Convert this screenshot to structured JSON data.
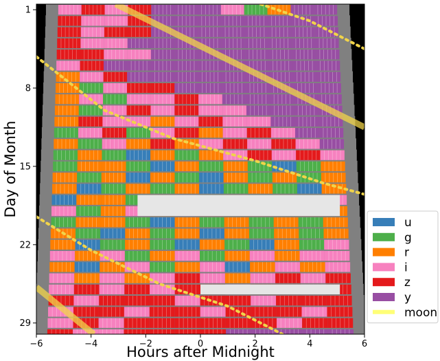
{
  "chart_data": {
    "type": "heatmap",
    "title": "",
    "xlabel": "Hours after Midnight",
    "ylabel": "Day of Month",
    "xlim": [
      -6,
      6
    ],
    "ylim": [
      30,
      0.5
    ],
    "x_ticks": [
      -6,
      -4,
      -2,
      0,
      2,
      4,
      6
    ],
    "x_tick_labels": [
      "−6",
      "−4",
      "−2",
      "0",
      "2",
      "4",
      "6"
    ],
    "y_ticks": [
      1,
      8,
      15,
      22,
      29
    ],
    "y_tick_labels": [
      "1",
      "8",
      "15",
      "22",
      "29"
    ],
    "days": 30,
    "night_window": {
      "start_hours": [
        -5.2,
        -5.6
      ],
      "end_hours": [
        5.0,
        5.6
      ]
    },
    "gaps": [
      {
        "day_from": 18,
        "day_to": 19,
        "x_from": -2.3,
        "x_to": 5.1
      },
      {
        "day_from": 26,
        "day_to": 26,
        "x_from": 0.0,
        "x_to": 5.1
      }
    ],
    "filters": [
      {
        "name": "u",
        "color": "#377eb8"
      },
      {
        "name": "g",
        "color": "#4daf4a"
      },
      {
        "name": "r",
        "color": "#ff7f00"
      },
      {
        "name": "i",
        "color": "#f781bf"
      },
      {
        "name": "z",
        "color": "#e41a1c"
      },
      {
        "name": "y",
        "color": "#984ea3"
      }
    ],
    "filter_by_day_segment": [
      [
        "i",
        "z",
        "i",
        "z",
        "y",
        "y",
        "y",
        "i",
        "g",
        "r",
        "y",
        "y"
      ],
      [
        "z",
        "i",
        "i",
        "z",
        "y",
        "y",
        "y",
        "y",
        "y",
        "y",
        "y",
        "y"
      ],
      [
        "z",
        "i",
        "z",
        "z",
        "y",
        "y",
        "y",
        "y",
        "y",
        "y",
        "y",
        "y"
      ],
      [
        "z",
        "i",
        "i",
        "y",
        "y",
        "y",
        "y",
        "y",
        "y",
        "y",
        "y",
        "y"
      ],
      [
        "z",
        "z",
        "i",
        "i",
        "y",
        "y",
        "y",
        "y",
        "y",
        "y",
        "y",
        "y"
      ],
      [
        "i",
        "z",
        "y",
        "y",
        "y",
        "y",
        "y",
        "y",
        "y",
        "y",
        "y",
        "y"
      ],
      [
        "r",
        "i",
        "z",
        "y",
        "y",
        "y",
        "y",
        "y",
        "y",
        "y",
        "y",
        "y"
      ],
      [
        "r",
        "g",
        "i",
        "z",
        "z",
        "y",
        "y",
        "y",
        "y",
        "y",
        "y",
        "y"
      ],
      [
        "r",
        "i",
        "g",
        "i",
        "i",
        "z",
        "i",
        "y",
        "y",
        "y",
        "y",
        "y"
      ],
      [
        "r",
        "g",
        "i",
        "z",
        "i",
        "z",
        "i",
        "i",
        "y",
        "y",
        "y",
        "y"
      ],
      [
        "r",
        "z",
        "i",
        "i",
        "r",
        "i",
        "z",
        "i",
        "i",
        "y",
        "y",
        "y"
      ],
      [
        "g",
        "i",
        "z",
        "g",
        "i",
        "z",
        "r",
        "i",
        "z",
        "i",
        "y",
        "y"
      ],
      [
        "r",
        "g",
        "i",
        "r",
        "z",
        "r",
        "i",
        "z",
        "i",
        "z",
        "i",
        "y"
      ],
      [
        "g",
        "r",
        "g",
        "u",
        "r",
        "g",
        "r",
        "i",
        "z",
        "i",
        "z",
        "i"
      ],
      [
        "g",
        "r",
        "r",
        "g",
        "u",
        "r",
        "g",
        "r",
        "g",
        "u",
        "g",
        "r"
      ],
      [
        "r",
        "g",
        "r",
        "u",
        "r",
        "g",
        "u",
        "r",
        "g",
        "r",
        "g",
        "r"
      ],
      [
        "r",
        "u",
        "g",
        "r",
        "g",
        "r",
        "u",
        "g",
        "r",
        "g",
        "u",
        "r"
      ],
      [
        "u",
        "r",
        "r",
        "g",
        "r",
        "i",
        "g",
        "r",
        "g",
        "r",
        "g",
        "i"
      ],
      [
        "i",
        "g",
        "r",
        "i",
        "r",
        "i",
        "r",
        "r",
        "r",
        "r",
        "r",
        "r"
      ],
      [
        "g",
        "r",
        "r",
        "g",
        "u",
        "r",
        "g",
        "r",
        "g",
        "r",
        "g",
        "r"
      ],
      [
        "r",
        "g",
        "u",
        "r",
        "g",
        "r",
        "u",
        "r",
        "g",
        "r",
        "g",
        "r"
      ],
      [
        "r",
        "u",
        "g",
        "r",
        "g",
        "u",
        "r",
        "g",
        "u",
        "r",
        "g",
        "i"
      ],
      [
        "i",
        "r",
        "i",
        "g",
        "r",
        "i",
        "g",
        "r",
        "i",
        "r",
        "i",
        "i"
      ],
      [
        "r",
        "u",
        "r",
        "i",
        "g",
        "r",
        "i",
        "u",
        "r",
        "i",
        "r",
        "i"
      ],
      [
        "i",
        "r",
        "i",
        "r",
        "i",
        "z",
        "i",
        "r",
        "i",
        "z",
        "i",
        "z"
      ],
      [
        "i",
        "z",
        "i",
        "z",
        "i",
        "z",
        "z",
        "i",
        "z",
        "z",
        "i",
        "z"
      ],
      [
        "z",
        "i",
        "z",
        "z",
        "z",
        "i",
        "z",
        "z",
        "i",
        "z",
        "z",
        "z"
      ],
      [
        "i",
        "z",
        "z",
        "i",
        "z",
        "z",
        "i",
        "z",
        "z",
        "z",
        "i",
        "z"
      ],
      [
        "i",
        "z",
        "i",
        "z",
        "z",
        "z",
        "z",
        "z",
        "z",
        "i",
        "z",
        "z"
      ],
      [
        "z",
        "i",
        "i",
        "z",
        "z",
        "z",
        "z",
        "y",
        "y",
        "y",
        "y",
        "y"
      ]
    ],
    "moon_tracks": [
      {
        "style": "solid",
        "points": [
          [
            -3.1,
            0.5
          ],
          [
            6.0,
            11.5
          ]
        ]
      },
      {
        "style": "solid",
        "points": [
          [
            -6.0,
            25.8
          ],
          [
            -3.9,
            30.0
          ]
        ]
      },
      {
        "style": "dotted",
        "points": [
          [
            -6.0,
            5.2
          ],
          [
            -3.5,
            10.0
          ],
          [
            -1.0,
            12.5
          ],
          [
            2.0,
            14.5
          ],
          [
            4.5,
            16.5
          ],
          [
            6.0,
            17.5
          ]
        ]
      },
      {
        "style": "dotted",
        "points": [
          [
            -6.0,
            19.5
          ],
          [
            -4.0,
            22.5
          ],
          [
            -1.5,
            25.5
          ],
          [
            1.0,
            27.5
          ],
          [
            3.0,
            30.0
          ]
        ]
      },
      {
        "style": "dotted",
        "points": [
          [
            2.2,
            0.5
          ],
          [
            4.0,
            2.0
          ],
          [
            6.0,
            4.5
          ]
        ]
      }
    ],
    "legend": {
      "position": "lower-right",
      "entries": [
        {
          "label": "u",
          "color": "#377eb8",
          "kind": "patch"
        },
        {
          "label": "g",
          "color": "#4daf4a",
          "kind": "patch"
        },
        {
          "label": "r",
          "color": "#ff7f00",
          "kind": "patch"
        },
        {
          "label": "i",
          "color": "#f781bf",
          "kind": "patch"
        },
        {
          "label": "z",
          "color": "#e41a1c",
          "kind": "patch"
        },
        {
          "label": "y",
          "color": "#984ea3",
          "kind": "patch"
        },
        {
          "label": "moon",
          "color": "#ffff77",
          "kind": "line"
        }
      ]
    },
    "grid": false,
    "background_outside_night": "#000000",
    "twilight_color": "#808080",
    "moon_color": "#f1d44a"
  }
}
